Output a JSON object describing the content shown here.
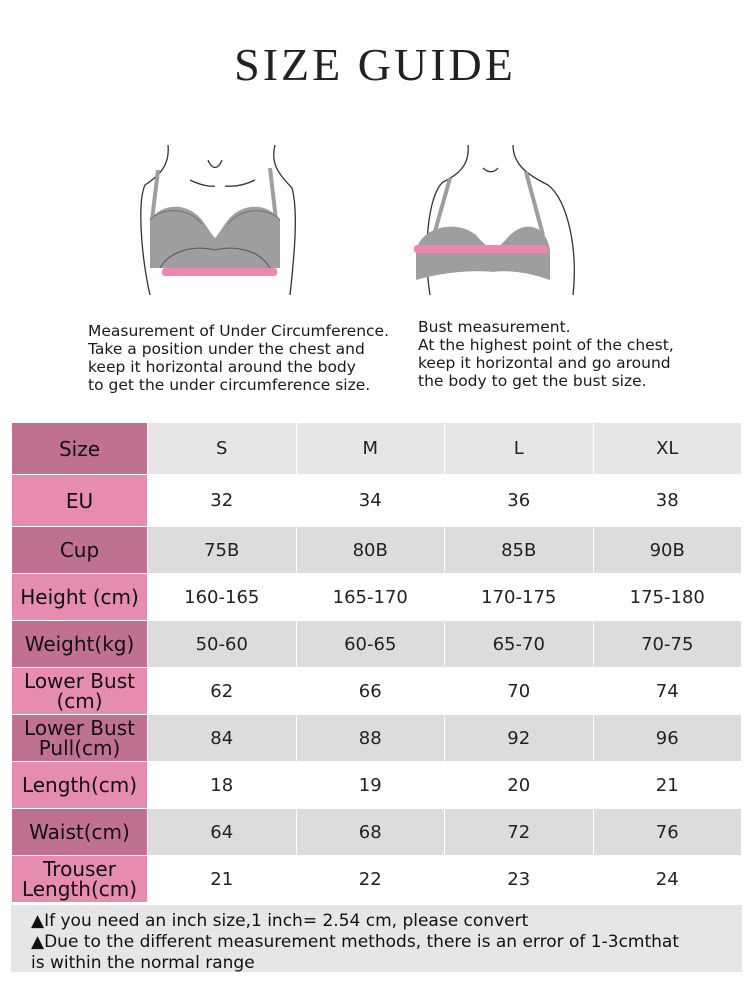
{
  "title": "SIZE GUIDE",
  "captions": {
    "left": [
      "Measurement of Under Circumference.",
      "Take a position under the chest and",
      "keep it horizontal around the body",
      "to get the under circumference size."
    ],
    "right": [
      "Bust measurement.",
      "At the highest point of the chest,",
      "keep it horizontal and go around",
      "the body to get the bust size."
    ]
  },
  "colors": {
    "pink_band": "#ef86b0",
    "pink_header": "#e58cb0",
    "pink_dark": "#c07191",
    "gray_row": "#dcdcdc",
    "bra_gray": "#9e9e9e"
  },
  "table": {
    "rows": [
      {
        "label": "Size",
        "values": [
          "S",
          "M",
          "L",
          "XL"
        ]
      },
      {
        "label": "EU",
        "values": [
          "32",
          "34",
          "36",
          "38"
        ]
      },
      {
        "label": "Cup",
        "values": [
          "75B",
          "80B",
          "85B",
          "90B"
        ]
      },
      {
        "label": "Height (cm)",
        "values": [
          "160-165",
          "165-170",
          "170-175",
          "175-180"
        ]
      },
      {
        "label": "Weight(kg)",
        "values": [
          "50-60",
          "60-65",
          "65-70",
          "70-75"
        ]
      },
      {
        "label": "Lower Bust (cm)",
        "values": [
          "62",
          "66",
          "70",
          "74"
        ]
      },
      {
        "label": "Lower Bust Pull(cm)",
        "values": [
          "84",
          "88",
          "92",
          "96"
        ]
      },
      {
        "label": "Length(cm)",
        "values": [
          "18",
          "19",
          "20",
          "21"
        ]
      },
      {
        "label": "Waist(cm)",
        "values": [
          "64",
          "68",
          "72",
          "76"
        ]
      },
      {
        "label": "Trouser Length(cm)",
        "values": [
          "21",
          "22",
          "23",
          "24"
        ]
      }
    ]
  },
  "notes": [
    "▲If you need an inch size,1 inch= 2.54 cm, please convert",
    "▲Due to the different measurement methods, there is an error of 1-3cmthat",
    "is within the normal range"
  ]
}
